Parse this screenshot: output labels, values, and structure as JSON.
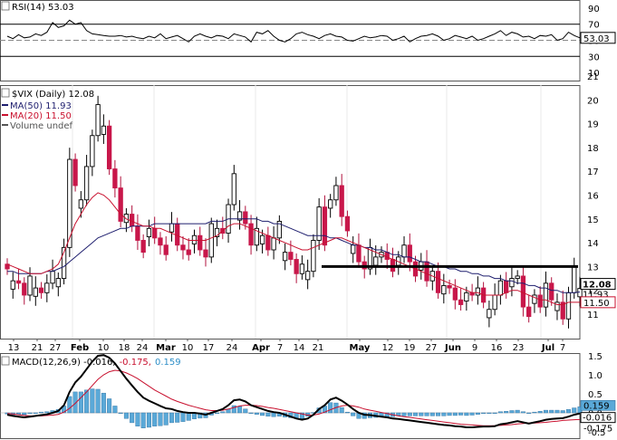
{
  "chart_data": [
    {
      "type": "line",
      "panel": "rsi",
      "title": "RSI(14) 53.03",
      "y_ticks": [
        90,
        70,
        50,
        30,
        10
      ],
      "overbought": 70,
      "oversold": 30,
      "ylim": [
        0,
        100
      ],
      "last_value": 53.03,
      "last_label": "53.03",
      "values": [
        55,
        52,
        57,
        53,
        54,
        58,
        56,
        60,
        72,
        66,
        68,
        75,
        70,
        72,
        62,
        58,
        57,
        56,
        55,
        55,
        56,
        54,
        55,
        53,
        52,
        55,
        53,
        58,
        52,
        54,
        56,
        52,
        48,
        55,
        58,
        55,
        53,
        56,
        55,
        52,
        58,
        56,
        54,
        48,
        60,
        58,
        62,
        55,
        50,
        48,
        52,
        58,
        60,
        57,
        55,
        52,
        56,
        58,
        55,
        54,
        50,
        49,
        52,
        55,
        53,
        54,
        56,
        55,
        50,
        52,
        55,
        48,
        52,
        55,
        56,
        58,
        55,
        50,
        52,
        56,
        54,
        52,
        55,
        50,
        52,
        55,
        58,
        62,
        56,
        60,
        58,
        54,
        55,
        52,
        56,
        55,
        57,
        50,
        52,
        60,
        56,
        53
      ]
    },
    {
      "type": "candlestick",
      "panel": "price",
      "title": "$VIX (Daily) 12.08",
      "legend": [
        {
          "name": "MA(50) 11.93",
          "color": "#1e1e6e"
        },
        {
          "name": "MA(20) 11.50",
          "color": "#c8102e"
        },
        {
          "name": "Volume undef",
          "color": "#555555"
        }
      ],
      "ylim": [
        10,
        22
      ],
      "y_ticks": [
        21,
        20,
        19,
        18,
        17,
        16,
        15,
        14,
        13,
        12,
        11
      ],
      "last_price_label": "12.08",
      "ma50_label": "11.93",
      "ma20_label": "11.50",
      "resistance": 13,
      "x_ticks": [
        "13",
        "21",
        "27",
        "Feb",
        "10",
        "18",
        "24",
        "Mar",
        "10",
        "17",
        "24",
        "Apr",
        "7",
        "14",
        "21",
        "May",
        "12",
        "19",
        "27",
        "Jun",
        "9",
        "16",
        "23",
        "Jul",
        "7"
      ],
      "closes": [
        12.9,
        12.4,
        12.3,
        11.8,
        12.6,
        12.1,
        11.9,
        12.3,
        12.8,
        12.5,
        13.8,
        17.5,
        16.4,
        15.8,
        17.2,
        18.5,
        19.8,
        18.9,
        17.1,
        16.3,
        14.9,
        15.2,
        14.7,
        14.1,
        13.6,
        14.6,
        14.2,
        13.9,
        13.5,
        14.8,
        13.9,
        13.7,
        13.5,
        14.3,
        13.7,
        13.4,
        14.8,
        14.6,
        14.4,
        15.6,
        16.9,
        15.3,
        14.8,
        13.9,
        14.6,
        14.3,
        13.7,
        14.2,
        14.9,
        13.6,
        13.3,
        12.7,
        13.1,
        12.8,
        14.1,
        15.5,
        13.9,
        15.8,
        16.4,
        15.1,
        14.5,
        13.9,
        13.2,
        12.9,
        13.8,
        13.4,
        13.6,
        13.3,
        12.8,
        13.4,
        13.9,
        13.2,
        12.6,
        13.2,
        12.4,
        12.8,
        11.9,
        12.2,
        12.1,
        11.6,
        11.4,
        11.9,
        11.8,
        12.1,
        11.5,
        11.2,
        11.8,
        12.4,
        11.9,
        12.5,
        12.6,
        11.3,
        10.9,
        11.8,
        11.3,
        12.3,
        11.6,
        11.5,
        10.8,
        11.9,
        13.0,
        12.08
      ],
      "ma20": [
        13.1,
        13.0,
        12.9,
        12.8,
        12.7,
        12.7,
        12.7,
        12.8,
        12.9,
        13.1,
        13.6,
        14.2,
        14.8,
        15.2,
        15.6,
        15.9,
        16.1,
        16.0,
        15.8,
        15.5,
        15.2,
        15.0,
        14.9,
        14.8,
        14.7,
        14.7,
        14.6,
        14.6,
        14.5,
        14.4,
        14.3,
        14.2,
        14.1,
        14.1,
        14.1,
        14.1,
        14.2,
        14.3,
        14.5,
        14.7,
        14.8,
        14.8,
        14.7,
        14.6,
        14.5,
        14.4,
        14.3,
        14.2,
        14.1,
        14.0,
        13.9,
        13.8,
        13.7,
        13.7,
        13.8,
        13.9,
        14.0,
        14.1,
        14.2,
        14.2,
        14.1,
        14.0,
        13.9,
        13.8,
        13.7,
        13.6,
        13.5,
        13.4,
        13.3,
        13.2,
        13.1,
        13.0,
        12.9,
        12.8,
        12.7,
        12.6,
        12.5,
        12.4,
        12.3,
        12.2,
        12.1,
        12.0,
        11.9,
        11.9,
        11.8,
        11.8,
        11.8,
        11.8,
        11.9,
        12.0,
        12.0,
        11.9,
        11.8,
        11.7,
        11.6,
        11.6,
        11.5,
        11.4,
        11.4,
        11.5,
        11.5,
        11.5
      ],
      "ma50": [
        12.8,
        12.8,
        12.7,
        12.7,
        12.7,
        12.7,
        12.7,
        12.8,
        12.8,
        12.9,
        13.0,
        13.2,
        13.4,
        13.6,
        13.8,
        14.0,
        14.2,
        14.3,
        14.4,
        14.5,
        14.6,
        14.6,
        14.7,
        14.7,
        14.7,
        14.7,
        14.8,
        14.8,
        14.8,
        14.8,
        14.8,
        14.8,
        14.8,
        14.8,
        14.8,
        14.8,
        14.9,
        14.9,
        14.9,
        15.0,
        15.0,
        15.0,
        15.0,
        15.0,
        15.0,
        14.9,
        14.9,
        14.8,
        14.8,
        14.7,
        14.6,
        14.5,
        14.4,
        14.3,
        14.3,
        14.3,
        14.3,
        14.2,
        14.2,
        14.1,
        14.0,
        13.9,
        13.9,
        13.8,
        13.8,
        13.7,
        13.7,
        13.6,
        13.5,
        13.5,
        13.4,
        13.4,
        13.3,
        13.2,
        13.2,
        13.1,
        13.0,
        13.0,
        12.9,
        12.9,
        12.8,
        12.8,
        12.7,
        12.7,
        12.6,
        12.6,
        12.5,
        12.5,
        12.4,
        12.4,
        12.3,
        12.3,
        12.2,
        12.2,
        12.1,
        12.1,
        12.0,
        12.0,
        11.9,
        11.9,
        11.9,
        11.93
      ]
    },
    {
      "type": "line",
      "panel": "macd",
      "title": "MACD(12,26,9) -0.016, -0.175, 0.159",
      "title_parts": {
        "label": "MACD(12,26,9)",
        "macd": "-0.016,",
        "signal": "-0.175,",
        "hist": "0.159"
      },
      "y_ticks": [
        "1.5",
        "1.0",
        "0.5",
        "0.0",
        "-0.5"
      ],
      "ylim": [
        -0.6,
        1.75
      ],
      "macd_label": "-0.016",
      "signal_label": "-0.175",
      "hist_label": "0.159",
      "macd": [
        -0.05,
        -0.08,
        -0.1,
        -0.12,
        -0.1,
        -0.08,
        -0.06,
        -0.04,
        0.0,
        0.05,
        0.2,
        0.55,
        0.8,
        0.95,
        1.15,
        1.35,
        1.5,
        1.52,
        1.45,
        1.3,
        1.1,
        0.9,
        0.72,
        0.55,
        0.4,
        0.32,
        0.25,
        0.18,
        0.12,
        0.1,
        0.05,
        0.02,
        0.0,
        0.0,
        -0.02,
        -0.05,
        0.0,
        0.05,
        0.1,
        0.2,
        0.33,
        0.35,
        0.3,
        0.2,
        0.15,
        0.1,
        0.05,
        0.02,
        0.0,
        -0.05,
        -0.1,
        -0.15,
        -0.18,
        -0.15,
        -0.05,
        0.1,
        0.2,
        0.35,
        0.4,
        0.32,
        0.22,
        0.1,
        0.0,
        -0.05,
        -0.06,
        -0.08,
        -0.1,
        -0.12,
        -0.15,
        -0.16,
        -0.18,
        -0.2,
        -0.22,
        -0.24,
        -0.26,
        -0.28,
        -0.3,
        -0.32,
        -0.33,
        -0.35,
        -0.36,
        -0.38,
        -0.38,
        -0.37,
        -0.36,
        -0.36,
        -0.35,
        -0.3,
        -0.28,
        -0.25,
        -0.22,
        -0.25,
        -0.28,
        -0.25,
        -0.22,
        -0.18,
        -0.16,
        -0.15,
        -0.14,
        -0.1,
        -0.05,
        -0.016
      ],
      "signal": [
        -0.02,
        -0.03,
        -0.05,
        -0.07,
        -0.08,
        -0.08,
        -0.08,
        -0.07,
        -0.06,
        -0.04,
        0.02,
        0.12,
        0.25,
        0.4,
        0.55,
        0.72,
        0.88,
        1.0,
        1.08,
        1.12,
        1.1,
        1.05,
        0.98,
        0.9,
        0.8,
        0.7,
        0.6,
        0.52,
        0.44,
        0.36,
        0.3,
        0.25,
        0.2,
        0.16,
        0.12,
        0.08,
        0.06,
        0.06,
        0.07,
        0.1,
        0.14,
        0.18,
        0.2,
        0.2,
        0.19,
        0.17,
        0.14,
        0.12,
        0.09,
        0.06,
        0.03,
        0.0,
        -0.03,
        -0.06,
        -0.06,
        -0.03,
        0.02,
        0.08,
        0.14,
        0.18,
        0.2,
        0.18,
        0.15,
        0.1,
        0.07,
        0.04,
        0.01,
        -0.02,
        -0.05,
        -0.08,
        -0.1,
        -0.12,
        -0.14,
        -0.16,
        -0.18,
        -0.2,
        -0.22,
        -0.24,
        -0.26,
        -0.28,
        -0.3,
        -0.31,
        -0.32,
        -0.33,
        -0.34,
        -0.34,
        -0.34,
        -0.33,
        -0.32,
        -0.31,
        -0.29,
        -0.28,
        -0.27,
        -0.27,
        -0.26,
        -0.25,
        -0.23,
        -0.22,
        -0.2,
        -0.19,
        -0.18,
        -0.175
      ]
    }
  ]
}
